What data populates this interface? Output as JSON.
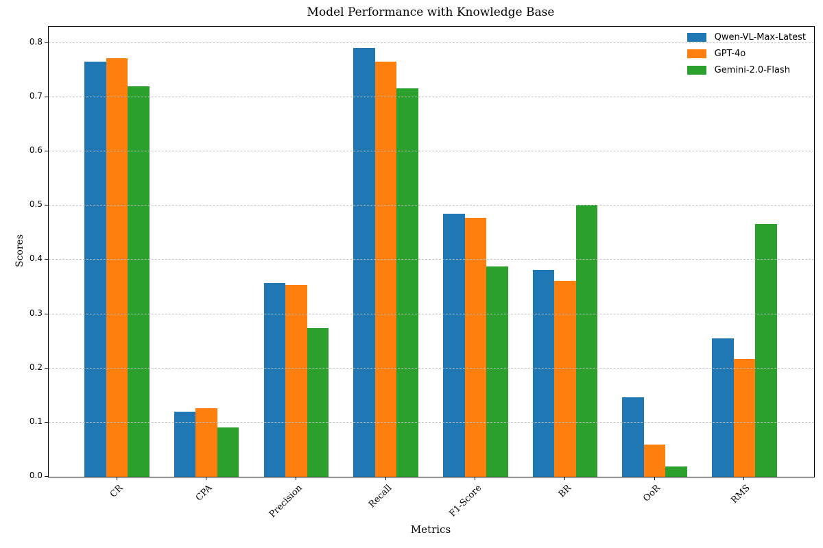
{
  "chart_data": {
    "type": "bar",
    "title": "Model Performance with Knowledge Base",
    "xlabel": "Metrics",
    "ylabel": "Scores",
    "categories": [
      "CR",
      "CPA",
      "Precision",
      "Recall",
      "F1-Score",
      "BR",
      "OoR",
      "RMS"
    ],
    "series": [
      {
        "name": "Qwen-VL-Max-Latest",
        "color": "#1f77b4",
        "values": [
          0.765,
          0.12,
          0.358,
          0.791,
          0.485,
          0.382,
          0.147,
          0.255
        ]
      },
      {
        "name": "GPT-4o",
        "color": "#ff7f0e",
        "values": [
          0.772,
          0.126,
          0.354,
          0.766,
          0.477,
          0.361,
          0.059,
          0.217
        ]
      },
      {
        "name": "Gemini-2.0-Flash",
        "color": "#2ca02c",
        "values": [
          0.72,
          0.091,
          0.274,
          0.716,
          0.388,
          0.501,
          0.019,
          0.466
        ]
      }
    ],
    "ylim": [
      0,
      0.83
    ],
    "yticks": [
      0.0,
      0.1,
      0.2,
      0.3,
      0.4,
      0.5,
      0.6,
      0.7,
      0.8
    ],
    "grid": "horizontal-dashed",
    "grid_color": "#bfbfbf",
    "legend_position": "upper-right"
  }
}
